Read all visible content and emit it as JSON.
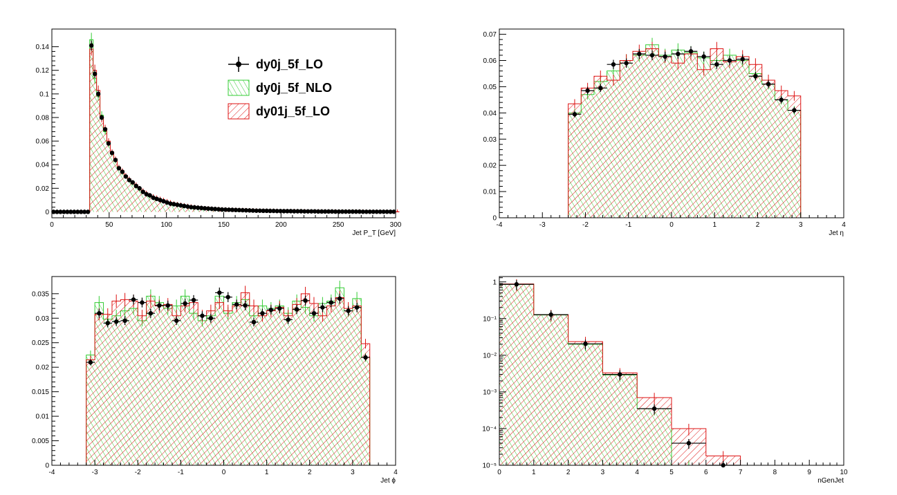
{
  "colors": {
    "lo": "#000000",
    "nlo": "#33cc33",
    "lo01": "#dd1111"
  },
  "legend": {
    "entries": [
      {
        "label": "dy0j_5f_LO",
        "style": "points"
      },
      {
        "label": "dy0j_5f_NLO",
        "style": "green-hatch"
      },
      {
        "label": "dy01j_5f_LO",
        "style": "red-hatch"
      }
    ]
  },
  "chart_data": [
    {
      "type": "histogram",
      "xlabel": "Jet P_T [GeV]",
      "xlim": [
        0,
        300
      ],
      "ylim": [
        -0.005,
        0.155
      ],
      "xticks": [
        0,
        50,
        100,
        150,
        200,
        250,
        300
      ],
      "yticks": [
        0,
        0.02,
        0.04,
        0.06,
        0.08,
        0.1,
        0.12,
        0.14
      ],
      "ytick_labels": [
        "0",
        "0.02",
        "0.04",
        "0.06",
        "0.08",
        "0.1",
        "0.12",
        "0.14"
      ],
      "bin_width": 3,
      "x_start": 0,
      "series": [
        {
          "name": "dy0j_5f_LO",
          "style": "points",
          "values": [
            0,
            0,
            0,
            0,
            0,
            0,
            0,
            0,
            0,
            0,
            0,
            0.141,
            0.117,
            0.1,
            0.08,
            0.07,
            0.058,
            0.05,
            0.044,
            0.037,
            0.034,
            0.03,
            0.027,
            0.025,
            0.022,
            0.02,
            0.017,
            0.015,
            0.014,
            0.012,
            0.011,
            0.01,
            0.009,
            0.008,
            0.007,
            0.0065,
            0.006,
            0.0055,
            0.005,
            0.0045,
            0.004,
            0.0038,
            0.0035,
            0.0033,
            0.003,
            0.0028,
            0.0026,
            0.0024,
            0.0022,
            0.002,
            0.0019,
            0.0018,
            0.0017,
            0.0016,
            0.0015,
            0.0014,
            0.0013,
            0.0012,
            0.0011,
            0.001,
            0.001,
            0.0009,
            0.0009,
            0.0008,
            0.0008,
            0.0007,
            0.0007,
            0.0006,
            0.0006,
            0.0006,
            0.0005,
            0.0005,
            0.0005,
            0.0004,
            0.0004,
            0.0004,
            0.0004,
            0.0003,
            0.0003,
            0.0003,
            0.0003,
            0.0003,
            0.0002,
            0.0002,
            0.0002,
            0.0002,
            0.0002,
            0.0002,
            0.0002,
            0.0002,
            0.0001,
            0.0001,
            0.0001,
            0.0001,
            0.0001,
            0.0001,
            0.0001,
            0.0001,
            0.0001,
            0.0001
          ]
        },
        {
          "name": "dy0j_5f_NLO",
          "style": "green-hatch",
          "values": [
            0,
            0,
            0,
            0,
            0,
            0,
            0,
            0,
            0,
            0,
            0,
            0.146,
            0.113,
            0.098,
            0.082,
            0.068,
            0.057,
            0.049,
            0.043,
            0.038,
            0.033,
            0.03,
            0.027,
            0.024,
            0.021,
            0.019,
            0.017,
            0.015,
            0.013,
            0.012,
            0.011,
            0.01,
            0.009,
            0.008,
            0.007,
            0.0065,
            0.006,
            0.0055,
            0.005,
            0.0045,
            0.004,
            0.0037,
            0.0034,
            0.0032,
            0.003,
            0.0028,
            0.0026,
            0.0024,
            0.0022,
            0.002,
            0.0019,
            0.0018,
            0.0017,
            0.0016,
            0.0015,
            0.0014,
            0.0013,
            0.0012,
            0.0011,
            0.001,
            0.001,
            0.0009,
            0.0009,
            0.0008,
            0.0008,
            0.0007,
            0.0007,
            0.0006,
            0.0006,
            0.0006,
            0.0005,
            0.0005,
            0.0005,
            0.0004,
            0.0004,
            0.0004,
            0.0004,
            0.0003,
            0.0003,
            0.0003,
            0.0003,
            0.0003,
            0.0002,
            0.0002,
            0.0002,
            0.0002,
            0.0002,
            0.0002,
            0.0002,
            0.0002,
            0.0001,
            0.0001,
            0.0001,
            0.0001,
            0.0001,
            0.0001,
            0.0001,
            0.0001,
            0.0001,
            0.0001
          ]
        },
        {
          "name": "dy01j_5f_LO",
          "style": "red-hatch",
          "values": [
            0,
            0,
            0,
            0,
            0,
            0,
            0,
            0,
            0,
            0,
            0,
            0.138,
            0.12,
            0.103,
            0.079,
            0.071,
            0.06,
            0.051,
            0.045,
            0.038,
            0.035,
            0.031,
            0.028,
            0.025,
            0.023,
            0.02,
            0.018,
            0.016,
            0.014,
            0.013,
            0.012,
            0.011,
            0.01,
            0.009,
            0.008,
            0.007,
            0.0065,
            0.006,
            0.0055,
            0.005,
            0.0045,
            0.004,
            0.0036,
            0.0034,
            0.0031,
            0.0029,
            0.0027,
            0.0025,
            0.0023,
            0.0021,
            0.002,
            0.0019,
            0.0018,
            0.0017,
            0.0016,
            0.0015,
            0.0014,
            0.0013,
            0.0012,
            0.0011,
            0.001,
            0.001,
            0.0009,
            0.0009,
            0.0008,
            0.0008,
            0.0007,
            0.0007,
            0.0006,
            0.0006,
            0.0006,
            0.0005,
            0.0005,
            0.0005,
            0.0004,
            0.0004,
            0.0004,
            0.0004,
            0.0003,
            0.0003,
            0.0003,
            0.0003,
            0.0003,
            0.0002,
            0.0002,
            0.0002,
            0.0002,
            0.0002,
            0.0002,
            0.0002,
            0.0002,
            0.0001,
            0.0001,
            0.0001,
            0.0001,
            0.0001,
            0.0001,
            0.0001,
            0.0001,
            0.0001,
            0.0001
          ]
        }
      ]
    },
    {
      "type": "histogram",
      "xlabel": "Jet η",
      "xlim": [
        -4,
        4
      ],
      "ylim": [
        0,
        0.072
      ],
      "xticks": [
        -4,
        -3,
        -2,
        -1,
        0,
        1,
        2,
        3,
        4
      ],
      "yticks": [
        0,
        0.01,
        0.02,
        0.03,
        0.04,
        0.05,
        0.06,
        0.07
      ],
      "ytick_labels": [
        "0",
        "0.01",
        "0.02",
        "0.03",
        "0.04",
        "0.05",
        "0.06",
        "0.07"
      ],
      "bin_width": 0.3,
      "x_start": -2.4,
      "series": [
        {
          "name": "dy0j_5f_LO",
          "style": "points",
          "values": [
            0.0395,
            0.0485,
            0.0495,
            0.0585,
            0.059,
            0.0625,
            0.062,
            0.0615,
            0.0625,
            0.0635,
            0.0615,
            0.0585,
            0.06,
            0.0605,
            0.054,
            0.051,
            0.045,
            0.041
          ]
        },
        {
          "name": "dy0j_5f_NLO",
          "style": "green-hatch",
          "values": [
            0.04,
            0.047,
            0.052,
            0.056,
            0.06,
            0.062,
            0.066,
            0.062,
            0.064,
            0.063,
            0.061,
            0.06,
            0.062,
            0.06,
            0.055,
            0.051,
            0.045,
            0.041
          ]
        },
        {
          "name": "dy01j_5f_LO",
          "style": "red-hatch",
          "values": [
            0.0435,
            0.0495,
            0.054,
            0.0525,
            0.06,
            0.0635,
            0.0645,
            0.0615,
            0.059,
            0.0625,
            0.0565,
            0.0645,
            0.0595,
            0.0615,
            0.0585,
            0.0525,
            0.0485,
            0.0465
          ]
        }
      ]
    },
    {
      "type": "histogram",
      "xlabel": "Jet ϕ",
      "xlim": [
        -4,
        4
      ],
      "ylim": [
        0,
        0.0385
      ],
      "xticks": [
        -4,
        -3,
        -2,
        -1,
        0,
        1,
        2,
        3,
        4
      ],
      "yticks": [
        0,
        0.005,
        0.01,
        0.015,
        0.02,
        0.025,
        0.03,
        0.035
      ],
      "ytick_labels": [
        "0",
        "0.005",
        "0.01",
        "0.015",
        "0.02",
        "0.025",
        "0.03",
        "0.035"
      ],
      "bin_width": 0.2,
      "x_start": -3.2,
      "series": [
        {
          "name": "dy0j_5f_LO",
          "style": "points",
          "values": [
            0.021,
            0.031,
            0.029,
            0.0293,
            0.0295,
            0.0338,
            0.0332,
            0.031,
            0.0326,
            0.0326,
            0.0295,
            0.033,
            0.0337,
            0.0305,
            0.03,
            0.0352,
            0.0343,
            0.0328,
            0.0326,
            0.0292,
            0.031,
            0.0317,
            0.032,
            0.0297,
            0.0318,
            0.0336,
            0.031,
            0.0322,
            0.0332,
            0.034,
            0.0315,
            0.0322,
            0.022
          ]
        },
        {
          "name": "dy0j_5f_NLO",
          "style": "green-hatch",
          "values": [
            0.0225,
            0.0332,
            0.0298,
            0.0305,
            0.0315,
            0.032,
            0.0295,
            0.0345,
            0.0332,
            0.032,
            0.0325,
            0.0345,
            0.031,
            0.0295,
            0.0305,
            0.0345,
            0.031,
            0.0332,
            0.0338,
            0.0305,
            0.0325,
            0.032,
            0.0325,
            0.031,
            0.0335,
            0.0322,
            0.0305,
            0.033,
            0.0335,
            0.0362,
            0.0315,
            0.034,
            0.022
          ]
        },
        {
          "name": "dy01j_5f_LO",
          "style": "red-hatch",
          "values": [
            0.0215,
            0.0308,
            0.0308,
            0.0335,
            0.0338,
            0.0335,
            0.0305,
            0.0335,
            0.0325,
            0.0328,
            0.0305,
            0.0325,
            0.0332,
            0.0305,
            0.0315,
            0.0332,
            0.0315,
            0.0325,
            0.0352,
            0.0325,
            0.0305,
            0.0315,
            0.0322,
            0.0305,
            0.0328,
            0.035,
            0.033,
            0.0305,
            0.0325,
            0.0342,
            0.032,
            0.0325,
            0.0248
          ]
        }
      ]
    },
    {
      "type": "histogram",
      "xlabel": "nGenJet",
      "log_y": true,
      "xlim": [
        0,
        10
      ],
      "ylim": [
        1e-05,
        1.4
      ],
      "xticks": [
        0,
        1,
        2,
        3,
        4,
        5,
        6,
        7,
        8,
        9,
        10
      ],
      "yticks": [
        1e-05,
        0.0001,
        0.001,
        0.01,
        0.1,
        1
      ],
      "ytick_labels": [
        "10⁻⁵",
        "10⁻⁴",
        "10⁻³",
        "10⁻²",
        "10⁻¹",
        "1"
      ],
      "bin_width": 1,
      "x_start": 0,
      "series": [
        {
          "name": "dy0j_5f_LO",
          "style": "points",
          "values": [
            0.86,
            0.128,
            0.0205,
            0.003,
            0.00035,
            4e-05,
            1e-05,
            0,
            0,
            0
          ]
        },
        {
          "name": "dy0j_5f_NLO",
          "style": "green-hatch",
          "values": [
            0.86,
            0.125,
            0.02,
            0.0029,
            0.00035,
            1e-05,
            0,
            0,
            0,
            0
          ]
        },
        {
          "name": "dy01j_5f_LO",
          "style": "red-hatch",
          "values": [
            0.88,
            0.128,
            0.0235,
            0.0033,
            0.0007,
            0.0001,
            1.8e-05,
            0,
            0,
            0
          ]
        }
      ]
    }
  ]
}
